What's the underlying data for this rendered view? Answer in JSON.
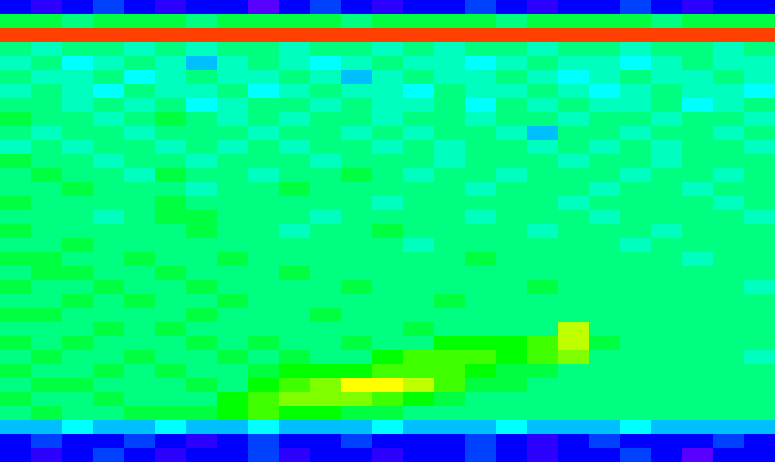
{
  "chart_data": {
    "type": "heatmap",
    "tick_labels": false,
    "color_range": [
      0,
      20
    ],
    "cells": [
      [
        4,
        3,
        4,
        5,
        4,
        3,
        4,
        4,
        2,
        4,
        5,
        4,
        3,
        4,
        4,
        5,
        4,
        3,
        4,
        4,
        5,
        4,
        3,
        4,
        4
      ],
      [
        11,
        11,
        10,
        11,
        11,
        11,
        10,
        11,
        11,
        11,
        11,
        10,
        11,
        11,
        11,
        11,
        10,
        11,
        11,
        11,
        11,
        10,
        11,
        11,
        11
      ],
      [
        19,
        19,
        19,
        19,
        19,
        19,
        19,
        19,
        19,
        19,
        19,
        19,
        19,
        19,
        19,
        19,
        19,
        19,
        19,
        19,
        19,
        19,
        19,
        19,
        19
      ],
      [
        10,
        9,
        10,
        10,
        9,
        10,
        9,
        10,
        10,
        9,
        10,
        10,
        9,
        10,
        9,
        10,
        10,
        9,
        10,
        10,
        9,
        10,
        10,
        9,
        10
      ],
      [
        9,
        10,
        8,
        9,
        10,
        9,
        7,
        9,
        10,
        9,
        8,
        9,
        10,
        9,
        9,
        8,
        9,
        10,
        9,
        9,
        8,
        9,
        10,
        9,
        9
      ],
      [
        10,
        9,
        9,
        10,
        8,
        9,
        10,
        9,
        9,
        10,
        9,
        7,
        9,
        10,
        9,
        9,
        10,
        9,
        8,
        9,
        10,
        9,
        9,
        10,
        9
      ],
      [
        9,
        10,
        9,
        8,
        10,
        9,
        9,
        10,
        8,
        9,
        10,
        9,
        9,
        8,
        10,
        9,
        9,
        10,
        9,
        8,
        9,
        10,
        9,
        9,
        8
      ],
      [
        10,
        10,
        9,
        10,
        9,
        10,
        8,
        9,
        10,
        10,
        9,
        10,
        9,
        9,
        10,
        8,
        10,
        9,
        10,
        9,
        9,
        10,
        8,
        9,
        10
      ],
      [
        11,
        10,
        10,
        9,
        10,
        11,
        10,
        9,
        10,
        9,
        10,
        10,
        9,
        10,
        10,
        9,
        10,
        10,
        9,
        10,
        10,
        9,
        10,
        10,
        9
      ],
      [
        10,
        9,
        10,
        10,
        9,
        10,
        10,
        10,
        9,
        10,
        10,
        9,
        10,
        9,
        10,
        10,
        9,
        7,
        10,
        10,
        9,
        10,
        10,
        9,
        10
      ],
      [
        9,
        10,
        9,
        10,
        10,
        9,
        10,
        9,
        10,
        9,
        10,
        10,
        9,
        10,
        9,
        10,
        10,
        9,
        10,
        9,
        10,
        9,
        10,
        10,
        9
      ],
      [
        11,
        10,
        10,
        9,
        10,
        10,
        9,
        10,
        10,
        10,
        9,
        10,
        10,
        10,
        9,
        10,
        10,
        10,
        9,
        10,
        10,
        9,
        10,
        10,
        10
      ],
      [
        10,
        11,
        10,
        10,
        9,
        11,
        10,
        10,
        9,
        10,
        10,
        11,
        10,
        9,
        10,
        10,
        9,
        10,
        10,
        10,
        9,
        10,
        10,
        9,
        10
      ],
      [
        10,
        10,
        11,
        10,
        10,
        10,
        9,
        10,
        10,
        11,
        10,
        10,
        10,
        10,
        10,
        9,
        10,
        10,
        10,
        9,
        10,
        10,
        9,
        10,
        10
      ],
      [
        11,
        10,
        10,
        10,
        10,
        11,
        10,
        10,
        10,
        10,
        10,
        10,
        9,
        10,
        10,
        10,
        10,
        10,
        9,
        10,
        10,
        10,
        10,
        9,
        10
      ],
      [
        10,
        10,
        10,
        9,
        10,
        11,
        11,
        10,
        10,
        10,
        9,
        10,
        10,
        10,
        10,
        9,
        10,
        10,
        10,
        9,
        10,
        10,
        10,
        10,
        9
      ],
      [
        11,
        10,
        10,
        10,
        10,
        10,
        11,
        10,
        10,
        9,
        10,
        10,
        11,
        10,
        10,
        10,
        10,
        9,
        10,
        10,
        10,
        9,
        10,
        10,
        10
      ],
      [
        10,
        10,
        11,
        10,
        10,
        10,
        10,
        10,
        10,
        10,
        10,
        10,
        10,
        9,
        10,
        10,
        10,
        10,
        10,
        10,
        9,
        10,
        10,
        10,
        10
      ],
      [
        11,
        11,
        10,
        10,
        11,
        10,
        10,
        11,
        10,
        10,
        10,
        10,
        10,
        10,
        10,
        11,
        10,
        10,
        10,
        10,
        10,
        10,
        9,
        10,
        10
      ],
      [
        10,
        11,
        11,
        10,
        10,
        11,
        10,
        10,
        10,
        11,
        10,
        10,
        10,
        10,
        10,
        10,
        10,
        10,
        10,
        10,
        10,
        10,
        10,
        10,
        10
      ],
      [
        11,
        10,
        10,
        11,
        10,
        10,
        11,
        10,
        10,
        10,
        10,
        11,
        10,
        10,
        10,
        10,
        10,
        11,
        10,
        10,
        10,
        10,
        10,
        10,
        9
      ],
      [
        10,
        10,
        11,
        10,
        11,
        10,
        10,
        11,
        10,
        10,
        10,
        10,
        10,
        10,
        11,
        10,
        10,
        10,
        10,
        10,
        10,
        10,
        10,
        10,
        10
      ],
      [
        11,
        11,
        10,
        10,
        10,
        10,
        11,
        10,
        10,
        10,
        11,
        10,
        10,
        10,
        10,
        10,
        10,
        10,
        10,
        10,
        10,
        10,
        10,
        10,
        10
      ],
      [
        10,
        10,
        10,
        11,
        10,
        11,
        10,
        10,
        10,
        10,
        10,
        10,
        10,
        11,
        10,
        10,
        10,
        10,
        15,
        10,
        10,
        10,
        10,
        10,
        10
      ],
      [
        11,
        10,
        11,
        10,
        10,
        10,
        11,
        10,
        11,
        10,
        10,
        11,
        10,
        10,
        12,
        12,
        12,
        13,
        15,
        11,
        10,
        10,
        10,
        10,
        10
      ],
      [
        10,
        11,
        10,
        10,
        11,
        10,
        10,
        11,
        10,
        11,
        10,
        10,
        12,
        13,
        13,
        13,
        12,
        13,
        14,
        10,
        10,
        10,
        10,
        10,
        9
      ],
      [
        11,
        10,
        10,
        11,
        10,
        11,
        10,
        10,
        11,
        12,
        12,
        12,
        13,
        13,
        13,
        12,
        11,
        11,
        10,
        10,
        10,
        10,
        10,
        10,
        10
      ],
      [
        10,
        11,
        11,
        10,
        10,
        10,
        11,
        10,
        12,
        13,
        14,
        16,
        16,
        15,
        13,
        11,
        11,
        10,
        10,
        10,
        10,
        10,
        10,
        10,
        10
      ],
      [
        11,
        10,
        10,
        11,
        10,
        10,
        10,
        12,
        13,
        14,
        14,
        14,
        13,
        12,
        11,
        10,
        10,
        10,
        10,
        10,
        10,
        10,
        10,
        10,
        10
      ],
      [
        10,
        11,
        10,
        10,
        11,
        11,
        11,
        12,
        13,
        12,
        12,
        11,
        11,
        10,
        10,
        10,
        10,
        10,
        10,
        10,
        10,
        10,
        10,
        10,
        10
      ],
      [
        7,
        7,
        8,
        7,
        7,
        8,
        7,
        7,
        8,
        7,
        7,
        7,
        8,
        7,
        7,
        7,
        8,
        7,
        7,
        7,
        8,
        7,
        7,
        7,
        7
      ],
      [
        4,
        5,
        4,
        4,
        5,
        4,
        3,
        4,
        5,
        4,
        4,
        5,
        4,
        4,
        4,
        5,
        4,
        3,
        4,
        5,
        4,
        4,
        4,
        5,
        4
      ],
      [
        4,
        3,
        4,
        5,
        4,
        3,
        4,
        4,
        5,
        3,
        4,
        4,
        3,
        4,
        4,
        5,
        4,
        3,
        4,
        4,
        5,
        4,
        2,
        4,
        4
      ]
    ]
  }
}
